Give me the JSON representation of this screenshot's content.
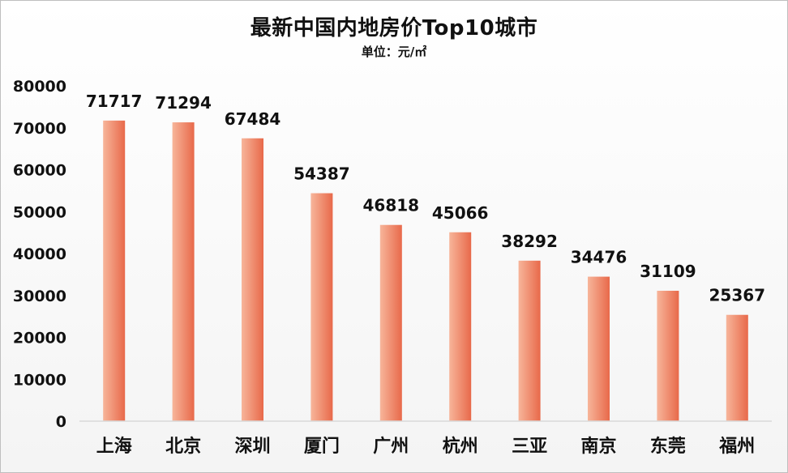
{
  "chart_data": {
    "type": "bar",
    "title": "最新中国内地房价Top10城市",
    "subtitle": "单位：元/㎡",
    "categories": [
      "上海",
      "北京",
      "深圳",
      "厦门",
      "广州",
      "杭州",
      "三亚",
      "南京",
      "东莞",
      "福州"
    ],
    "values": [
      71717,
      71294,
      67484,
      54387,
      46818,
      45066,
      38292,
      34476,
      31109,
      25367
    ],
    "ylim": [
      0,
      80000
    ],
    "yticks": [
      0,
      10000,
      20000,
      30000,
      40000,
      50000,
      60000,
      70000,
      80000
    ],
    "grid": false,
    "legend": "none",
    "bar_color_light": "#f7b59a",
    "bar_color_dark": "#e8694a"
  }
}
